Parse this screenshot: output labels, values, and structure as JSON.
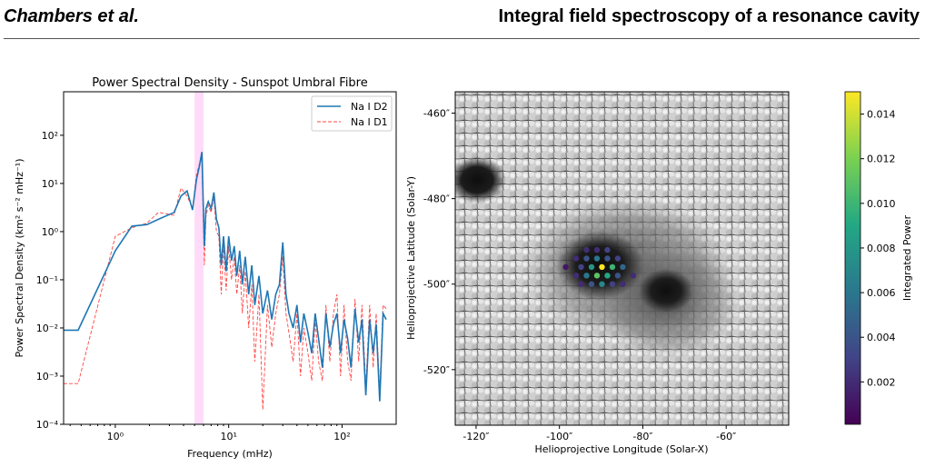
{
  "header": {
    "author": "Chambers et al.",
    "running_title": "Integral field spectroscopy of a resonance cavity"
  },
  "chart_data": [
    {
      "type": "line",
      "title": "Power Spectral Density - Sunspot Umbral Fibre",
      "xlabel": "Frequency (mHz)",
      "ylabel": "Power Spectral Density (km² s⁻² mHz⁻¹)",
      "xscale": "log",
      "yscale": "log",
      "xlim": [
        0.35,
        300
      ],
      "ylim": [
        0.0001,
        800
      ],
      "x_ticks": [
        {
          "value": 1,
          "label": "10⁰"
        },
        {
          "value": 10,
          "label": "10¹"
        },
        {
          "value": 100,
          "label": "10²"
        }
      ],
      "y_ticks": [
        {
          "value": 0.0001,
          "label": "10⁻⁴"
        },
        {
          "value": 0.001,
          "label": "10⁻³"
        },
        {
          "value": 0.01,
          "label": "10⁻²"
        },
        {
          "value": 0.1,
          "label": "10⁻¹"
        },
        {
          "value": 1,
          "label": "10⁰"
        },
        {
          "value": 10,
          "label": "10¹"
        },
        {
          "value": 100,
          "label": "10²"
        }
      ],
      "highlight_band": {
        "x0": 5.0,
        "x1": 6.0,
        "color": "#ff99ee"
      },
      "legend_position": "upper right",
      "series": [
        {
          "name": "Na I D2",
          "color": "#1f77b4",
          "style": "solid",
          "x": [
            0.35,
            0.47,
            1.0,
            1.4,
            1.9,
            2.4,
            3.3,
            3.8,
            4.3,
            4.8,
            5.2,
            5.5,
            5.8,
            6.1,
            6.3,
            6.6,
            7.0,
            7.4,
            7.8,
            8.2,
            8.6,
            9.0,
            9.5,
            10.0,
            10.6,
            11.2,
            11.8,
            12.5,
            13.2,
            14.0,
            15.0,
            16.0,
            17.0,
            18.5,
            20.0,
            22.0,
            24.0,
            26.0,
            28.0,
            30.0,
            32.0,
            34.0,
            37.0,
            40.0,
            43.0,
            46.0,
            50.0,
            54.0,
            58.0,
            62.0,
            67.0,
            72.0,
            78.0,
            84.0,
            90.0,
            97.0,
            104.0,
            112.0,
            120.0,
            130.0,
            140.0,
            150.0,
            162.0,
            175.0,
            188.0,
            200.0,
            215.0,
            230.0,
            245.0
          ],
          "y": [
            0.009,
            0.009,
            0.4,
            1.3,
            1.4,
            1.8,
            2.5,
            5.5,
            7.0,
            2.8,
            12.0,
            22.0,
            45.0,
            0.5,
            3.0,
            4.2,
            3.0,
            6.5,
            1.8,
            1.2,
            0.2,
            0.8,
            0.15,
            0.8,
            0.25,
            0.5,
            0.12,
            0.4,
            0.08,
            0.3,
            0.05,
            0.2,
            0.03,
            0.12,
            0.02,
            0.06,
            0.015,
            0.05,
            0.08,
            0.6,
            0.05,
            0.02,
            0.01,
            0.03,
            0.005,
            0.02,
            0.008,
            0.003,
            0.02,
            0.006,
            0.0015,
            0.02,
            0.004,
            0.012,
            0.02,
            0.003,
            0.015,
            0.006,
            0.0015,
            0.025,
            0.005,
            0.015,
            0.0004,
            0.015,
            0.003,
            0.012,
            0.0003,
            0.02,
            0.015
          ]
        },
        {
          "name": "Na I D1",
          "color": "#ff4444",
          "style": "dashed",
          "x": [
            0.35,
            0.47,
            1.0,
            1.4,
            1.9,
            2.4,
            3.3,
            3.8,
            4.3,
            4.8,
            5.2,
            5.5,
            5.8,
            6.1,
            6.3,
            6.6,
            7.0,
            7.4,
            7.8,
            8.2,
            8.6,
            9.0,
            9.5,
            10.0,
            10.6,
            11.2,
            11.8,
            12.5,
            13.2,
            14.0,
            15.0,
            16.0,
            17.0,
            18.5,
            20.0,
            22.0,
            24.0,
            26.0,
            28.0,
            30.0,
            32.0,
            34.0,
            37.0,
            40.0,
            43.0,
            46.0,
            50.0,
            54.0,
            58.0,
            62.0,
            67.0,
            72.0,
            78.0,
            84.0,
            90.0,
            97.0,
            104.0,
            112.0,
            120.0,
            130.0,
            140.0,
            150.0,
            162.0,
            175.0,
            188.0,
            200.0,
            215.0,
            230.0,
            245.0
          ],
          "y": [
            0.0007,
            0.0007,
            0.8,
            1.2,
            1.5,
            2.5,
            2.2,
            8.0,
            5.5,
            3.0,
            15.0,
            25.0,
            30.0,
            0.2,
            2.0,
            3.5,
            2.5,
            5.0,
            1.0,
            0.8,
            0.05,
            0.5,
            0.06,
            0.5,
            0.1,
            0.3,
            0.05,
            0.2,
            0.02,
            0.15,
            0.01,
            0.08,
            0.002,
            0.05,
            0.0002,
            0.03,
            0.004,
            0.02,
            0.05,
            0.3,
            0.02,
            0.008,
            0.002,
            0.02,
            0.001,
            0.01,
            0.003,
            0.0008,
            0.015,
            0.002,
            0.0008,
            0.03,
            0.002,
            0.02,
            0.05,
            0.001,
            0.03,
            0.002,
            0.0008,
            0.04,
            0.002,
            0.03,
            0.0006,
            0.03,
            0.0015,
            0.02,
            0.0005,
            0.03,
            0.025
          ]
        }
      ]
    },
    {
      "type": "heatmap",
      "xlabel": "Helioprojective Longitude (Solar-X)",
      "ylabel": "Helioprojective Latitude (Solar-Y)",
      "xlim": [
        -125,
        -45
      ],
      "ylim": [
        -533,
        -455
      ],
      "x_ticks": [
        {
          "value": -120,
          "label": "-120″"
        },
        {
          "value": -100,
          "label": "-100″"
        },
        {
          "value": -80,
          "label": "-80″"
        },
        {
          "value": -60,
          "label": "-60″"
        }
      ],
      "y_ticks": [
        {
          "value": -460,
          "label": "-460″"
        },
        {
          "value": -480,
          "label": "-480″"
        },
        {
          "value": -500,
          "label": "-500″"
        },
        {
          "value": -520,
          "label": "-520″"
        }
      ],
      "colorbar": {
        "label": "Integrated Power",
        "colormap": "viridis",
        "range": [
          0.0001,
          0.015
        ],
        "ticks": [
          {
            "value": 0.002,
            "label": "0.002"
          },
          {
            "value": 0.004,
            "label": "0.004"
          },
          {
            "value": 0.006,
            "label": "0.006"
          },
          {
            "value": 0.008,
            "label": "0.008"
          },
          {
            "value": 0.01,
            "label": "0.010"
          },
          {
            "value": 0.012,
            "label": "0.012"
          },
          {
            "value": 0.014,
            "label": "0.014"
          }
        ]
      },
      "fibres": [
        {
          "x": -96,
          "y": -494,
          "value": 0.002
        },
        {
          "x": -93.5,
          "y": -494,
          "value": 0.004
        },
        {
          "x": -91,
          "y": -494,
          "value": 0.006
        },
        {
          "x": -88.5,
          "y": -494,
          "value": 0.004
        },
        {
          "x": -86,
          "y": -494,
          "value": 0.003
        },
        {
          "x": -94.8,
          "y": -496,
          "value": 0.003
        },
        {
          "x": -92.3,
          "y": -496,
          "value": 0.008
        },
        {
          "x": -89.8,
          "y": -496,
          "value": 0.015
        },
        {
          "x": -87.3,
          "y": -496,
          "value": 0.01
        },
        {
          "x": -84.8,
          "y": -496,
          "value": 0.005
        },
        {
          "x": -96,
          "y": -498,
          "value": 0.002
        },
        {
          "x": -93.5,
          "y": -498,
          "value": 0.006
        },
        {
          "x": -91,
          "y": -498,
          "value": 0.011
        },
        {
          "x": -88.5,
          "y": -498,
          "value": 0.009
        },
        {
          "x": -86,
          "y": -498,
          "value": 0.004
        },
        {
          "x": -94.8,
          "y": -500,
          "value": 0.002
        },
        {
          "x": -92.3,
          "y": -500,
          "value": 0.004
        },
        {
          "x": -89.8,
          "y": -500,
          "value": 0.007
        },
        {
          "x": -87.3,
          "y": -500,
          "value": 0.003
        },
        {
          "x": -84.8,
          "y": -500,
          "value": 0.002
        },
        {
          "x": -93.5,
          "y": -492,
          "value": 0.002
        },
        {
          "x": -91,
          "y": -492,
          "value": 0.002
        },
        {
          "x": -88.5,
          "y": -492,
          "value": 0.003
        },
        {
          "x": -98.5,
          "y": -496,
          "value": 0.001
        },
        {
          "x": -82.3,
          "y": -498,
          "value": 0.002
        }
      ]
    }
  ]
}
